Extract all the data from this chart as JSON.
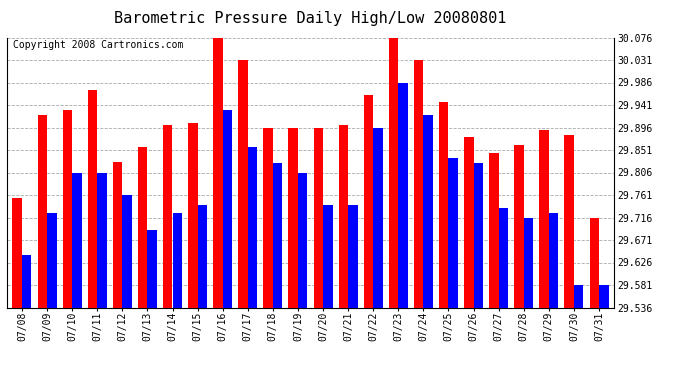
{
  "title": "Barometric Pressure Daily High/Low 20080801",
  "copyright": "Copyright 2008 Cartronics.com",
  "dates": [
    "07/08",
    "07/09",
    "07/10",
    "07/11",
    "07/12",
    "07/13",
    "07/14",
    "07/15",
    "07/16",
    "07/17",
    "07/18",
    "07/19",
    "07/20",
    "07/21",
    "07/22",
    "07/23",
    "07/24",
    "07/25",
    "07/26",
    "07/27",
    "07/28",
    "07/29",
    "07/30",
    "07/31"
  ],
  "highs": [
    29.756,
    29.921,
    29.931,
    29.971,
    29.828,
    29.858,
    29.901,
    29.906,
    30.076,
    30.031,
    29.896,
    29.896,
    29.896,
    29.901,
    29.961,
    30.076,
    30.031,
    29.946,
    29.876,
    29.846,
    29.861,
    29.891,
    29.881,
    29.716
  ],
  "lows": [
    29.641,
    29.726,
    29.806,
    29.806,
    29.761,
    29.691,
    29.726,
    29.741,
    29.931,
    29.856,
    29.826,
    29.806,
    29.741,
    29.741,
    29.896,
    29.986,
    29.921,
    29.836,
    29.826,
    29.736,
    29.716,
    29.726,
    29.581,
    29.581
  ],
  "ylim": [
    29.536,
    30.076
  ],
  "yticks": [
    29.536,
    29.581,
    29.626,
    29.671,
    29.716,
    29.761,
    29.806,
    29.851,
    29.896,
    29.941,
    29.986,
    30.031,
    30.076
  ],
  "high_color": "#FF0000",
  "low_color": "#0000FF",
  "background_color": "#FFFFFF",
  "grid_color": "#AAAAAA",
  "title_fontsize": 11,
  "copyright_fontsize": 7,
  "bar_width": 0.38
}
